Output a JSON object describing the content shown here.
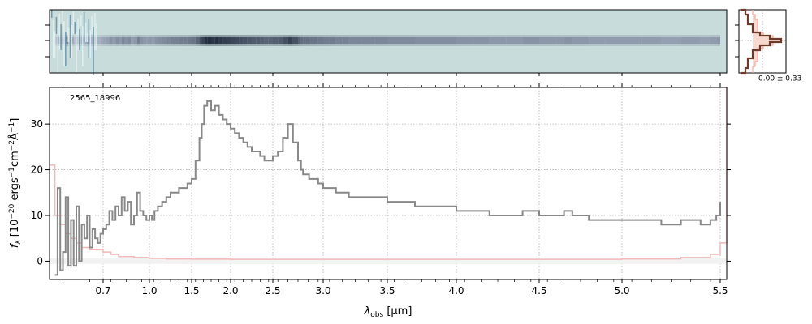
{
  "chart_data": {
    "type": "line",
    "object_label": "2565_18996",
    "xlabel_parts": {
      "lambda": "λ",
      "sub": "obs",
      "unit": " [μm]"
    },
    "ylabel_parts": {
      "f": "f",
      "sub": "λ",
      "unit_prefix": " [10",
      "exp": "−20",
      "unit_rest": " ergs",
      "exp2": "−1",
      "cm": "cm",
      "exp3": "−2",
      "ang": "Å",
      "exp4": "−1",
      "close": "]"
    },
    "profile_annotation": "0.00 ± 0.33",
    "x_ticks": [
      {
        "value": 0.7,
        "label": "0.7"
      },
      {
        "value": 1.0,
        "label": "1.0"
      },
      {
        "value": 1.5,
        "label": "1.5"
      },
      {
        "value": 2.0,
        "label": "2.0"
      },
      {
        "value": 2.5,
        "label": "2.5"
      },
      {
        "value": 3.0,
        "label": "3.0"
      },
      {
        "value": 3.5,
        "label": "3.5"
      },
      {
        "value": 4.0,
        "label": "4.0"
      },
      {
        "value": 4.5,
        "label": "4.5"
      },
      {
        "value": 5.0,
        "label": "5.0"
      },
      {
        "value": 5.5,
        "label": "5.5"
      }
    ],
    "y_ticks": [
      {
        "value": 0,
        "label": "0"
      },
      {
        "value": 10,
        "label": "10"
      },
      {
        "value": 20,
        "label": "20"
      },
      {
        "value": 30,
        "label": "30"
      }
    ],
    "xlim": [
      0.5,
      5.52
    ],
    "ylim": [
      -4,
      38
    ],
    "grid": true,
    "series": [
      {
        "color": "#888888",
        "style": "steps",
        "x": [
          0.52,
          0.53,
          0.54,
          0.55,
          0.56,
          0.57,
          0.58,
          0.59,
          0.6,
          0.61,
          0.62,
          0.63,
          0.64,
          0.65,
          0.66,
          0.67,
          0.68,
          0.69,
          0.7,
          0.72,
          0.74,
          0.76,
          0.78,
          0.8,
          0.82,
          0.84,
          0.86,
          0.88,
          0.9,
          0.92,
          0.94,
          0.96,
          0.98,
          1.0,
          1.03,
          1.06,
          1.1,
          1.15,
          1.2,
          1.25,
          1.3,
          1.35,
          1.4,
          1.45,
          1.5,
          1.55,
          1.6,
          1.63,
          1.66,
          1.7,
          1.75,
          1.8,
          1.85,
          1.9,
          1.95,
          2.0,
          2.05,
          2.1,
          2.15,
          2.2,
          2.25,
          2.3,
          2.35,
          2.4,
          2.45,
          2.5,
          2.55,
          2.6,
          2.65,
          2.7,
          2.75,
          2.78,
          2.8,
          2.83,
          2.86,
          2.9,
          2.95,
          3.0,
          3.05,
          3.1,
          3.15,
          3.2,
          3.3,
          3.4,
          3.5,
          3.6,
          3.7,
          3.8,
          3.9,
          4.0,
          4.1,
          4.2,
          4.3,
          4.4,
          4.5,
          4.6,
          4.65,
          4.7,
          4.8,
          4.9,
          5.0,
          5.1,
          5.2,
          5.3,
          5.4,
          5.45,
          5.48,
          5.5
        ],
        "y": [
          -3,
          16,
          -2,
          2,
          14,
          -1,
          9,
          -1,
          12,
          0,
          8,
          5,
          10,
          3,
          7,
          5,
          4,
          6,
          7,
          8,
          11,
          9,
          12,
          10,
          14,
          11,
          13,
          8,
          10,
          15,
          11,
          10,
          9,
          10,
          9,
          11,
          12,
          13,
          14,
          15,
          15,
          16,
          16,
          17,
          18,
          22,
          27,
          30,
          34,
          35,
          33,
          34,
          32,
          31,
          30,
          29,
          28,
          27,
          26,
          25,
          24,
          24,
          23,
          22,
          22,
          23,
          24,
          27,
          30,
          26,
          22,
          20,
          19,
          19,
          18,
          18,
          17,
          16,
          16,
          15,
          15,
          14,
          14,
          14,
          13,
          13,
          12,
          12,
          12,
          11,
          11,
          10,
          10,
          11,
          10,
          10,
          11,
          10,
          9,
          9,
          9,
          9,
          8,
          9,
          8,
          9,
          10,
          13
        ],
        "name": ""
      },
      {
        "color": "#f4b8b8",
        "style": "steps",
        "x": [
          0.5,
          0.52,
          0.54,
          0.56,
          0.58,
          0.6,
          0.62,
          0.65,
          0.7,
          0.75,
          0.8,
          0.9,
          1.0,
          1.2,
          1.5,
          2.0,
          3.0,
          4.0,
          5.0,
          5.3,
          5.45,
          5.5,
          5.52
        ],
        "y": [
          21,
          10,
          8,
          6,
          5,
          4,
          3,
          2.5,
          2,
          1.5,
          1,
          0.8,
          0.6,
          0.5,
          0.45,
          0.4,
          0.4,
          0.4,
          0.5,
          0.8,
          1.5,
          4,
          38
        ],
        "name": ""
      }
    ]
  }
}
